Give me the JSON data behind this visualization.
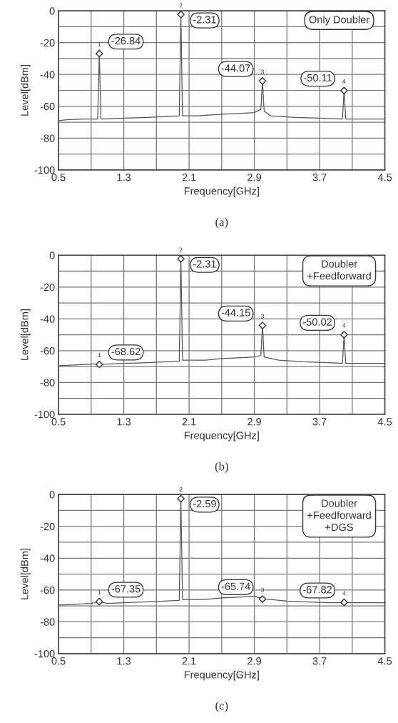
{
  "chart_data": [
    {
      "type": "line",
      "xlabel": "Frequency[GHz]",
      "ylabel": "Level[dBm]",
      "xlim": [
        0.5,
        4.5
      ],
      "ylim": [
        -100,
        0
      ],
      "xticks": [
        0.5,
        {
          "value": 0.9,
          "label": null
        },
        1.3,
        {
          "value": 1.7,
          "label": null
        },
        2.1,
        {
          "value": 2.5,
          "label": null
        },
        2.9,
        {
          "value": 3.3,
          "label": null
        },
        3.7,
        {
          "value": 4.1,
          "label": null
        },
        4.5
      ],
      "yticks": [
        -100,
        {
          "value": -90,
          "label": null
        },
        -80,
        {
          "value": -70,
          "label": null
        },
        -60,
        {
          "value": -50,
          "label": null
        },
        -40,
        {
          "value": -30,
          "label": null
        },
        -20,
        {
          "value": -10,
          "label": null
        },
        0
      ],
      "grid": true,
      "line_style": "solid",
      "series": [
        {
          "color": "#555555",
          "x": [
            0.5,
            0.6,
            0.8,
            0.98,
            1.0,
            1.02,
            1.3,
            1.6,
            1.98,
            2.0,
            2.02,
            2.2,
            2.5,
            2.7,
            2.9,
            2.98,
            3.0,
            3.02,
            3.1,
            3.4,
            3.7,
            3.98,
            4.0,
            4.02,
            4.3,
            4.5
          ],
          "values": [
            -69,
            -68.5,
            -68,
            -68,
            -27,
            -68,
            -67.5,
            -67,
            -66,
            -2,
            -66,
            -66,
            -65,
            -64.5,
            -64,
            -62,
            -44,
            -63,
            -66,
            -67,
            -67.5,
            -68,
            -50,
            -68,
            -68,
            -68
          ]
        },
        {
          "type": "scatter",
          "marker": "diamond",
          "color": "#333333",
          "x": [
            1.0,
            2.0,
            3.0,
            4.0
          ],
          "values": [
            -26.84,
            -2.31,
            -44.07,
            -50.11
          ],
          "value_labels": [
            "-26.84",
            "-2.31",
            "-44.07",
            "-50.11"
          ]
        }
      ],
      "annotations": [
        "Only Doubler",
        "(a)",
        {
          "text": "1",
          "x": 1.0,
          "y": -26.84
        },
        {
          "text": "2",
          "x": 2.0,
          "y": -2.31
        },
        {
          "text": "3",
          "x": 3.0,
          "y": -44.07
        },
        {
          "text": "4",
          "x": 4.0,
          "y": -50.11
        }
      ]
    },
    {
      "type": "line",
      "xlabel": "Frequency[GHz]",
      "ylabel": "Level[dBm]",
      "xlim": [
        0.5,
        4.5
      ],
      "ylim": [
        -100,
        0
      ],
      "xticks": [
        0.5,
        {
          "value": 0.9,
          "label": null
        },
        1.3,
        {
          "value": 1.7,
          "label": null
        },
        2.1,
        {
          "value": 2.5,
          "label": null
        },
        2.9,
        {
          "value": 3.3,
          "label": null
        },
        3.7,
        {
          "value": 4.1,
          "label": null
        },
        4.5
      ],
      "yticks": [
        -100,
        {
          "value": -90,
          "label": null
        },
        -80,
        {
          "value": -70,
          "label": null
        },
        -60,
        {
          "value": -50,
          "label": null
        },
        -40,
        {
          "value": -30,
          "label": null
        },
        -20,
        {
          "value": -10,
          "label": null
        },
        0
      ],
      "grid": true,
      "line_style": "solid",
      "series": [
        {
          "color": "#555555",
          "x": [
            0.5,
            0.7,
            0.9,
            1.0,
            1.1,
            1.3,
            1.6,
            1.98,
            2.0,
            2.02,
            2.3,
            2.5,
            2.7,
            2.9,
            2.98,
            3.0,
            3.02,
            3.2,
            3.5,
            3.8,
            3.98,
            4.0,
            4.02,
            4.3,
            4.5
          ],
          "values": [
            -69.5,
            -69,
            -68.5,
            -68.5,
            -68.5,
            -68,
            -67.5,
            -66.5,
            -2,
            -66,
            -66,
            -65,
            -64.5,
            -64,
            -63,
            -44,
            -64,
            -66,
            -67,
            -67.5,
            -68,
            -50,
            -68,
            -68,
            -68
          ]
        },
        {
          "type": "scatter",
          "marker": "diamond",
          "color": "#333333",
          "x": [
            1.0,
            2.0,
            3.0,
            4.0
          ],
          "values": [
            -68.62,
            -2.31,
            -44.15,
            -50.02
          ],
          "value_labels": [
            "-68.62",
            "-2.31",
            "-44.15",
            "-50.02"
          ]
        }
      ],
      "annotations": [
        "Doubler\n+Feedforward",
        "(b)",
        {
          "text": "1",
          "x": 1.0,
          "y": -68.62
        },
        {
          "text": "2",
          "x": 2.0,
          "y": -2.31
        },
        {
          "text": "3",
          "x": 3.0,
          "y": -44.15
        },
        {
          "text": "4",
          "x": 4.0,
          "y": -50.02
        }
      ]
    },
    {
      "type": "line",
      "xlabel": "Frequency[GHz]",
      "ylabel": "Level[dBm]",
      "xlim": [
        0.5,
        4.5
      ],
      "ylim": [
        -100,
        0
      ],
      "xticks": [
        0.5,
        {
          "value": 0.9,
          "label": null
        },
        1.3,
        {
          "value": 1.7,
          "label": null
        },
        2.1,
        {
          "value": 2.5,
          "label": null
        },
        2.9,
        {
          "value": 3.3,
          "label": null
        },
        3.7,
        {
          "value": 4.1,
          "label": null
        },
        4.5
      ],
      "yticks": [
        -100,
        {
          "value": -90,
          "label": null
        },
        -80,
        {
          "value": -70,
          "label": null
        },
        -60,
        {
          "value": -50,
          "label": null
        },
        -40,
        {
          "value": -30,
          "label": null
        },
        -20,
        {
          "value": -10,
          "label": null
        },
        0
      ],
      "grid": true,
      "line_style": "solid",
      "series": [
        {
          "color": "#555555",
          "x": [
            0.5,
            0.7,
            0.9,
            1.0,
            1.1,
            1.3,
            1.6,
            1.98,
            2.0,
            2.02,
            2.3,
            2.5,
            2.7,
            2.9,
            3.0,
            3.1,
            3.3,
            3.5,
            3.8,
            4.0,
            4.2,
            4.5
          ],
          "values": [
            -69.5,
            -69,
            -68.5,
            -67.5,
            -68.5,
            -68,
            -67.5,
            -66.5,
            -3,
            -66,
            -66,
            -65,
            -64.5,
            -64,
            -65.5,
            -66,
            -67,
            -67.5,
            -68,
            -68,
            -68,
            -68
          ]
        },
        {
          "type": "scatter",
          "marker": "diamond",
          "color": "#333333",
          "x": [
            1.0,
            2.0,
            3.0,
            4.0
          ],
          "values": [
            -67.35,
            -2.59,
            -65.74,
            -67.82
          ],
          "value_labels": [
            "-67.35",
            "-2.59",
            "-65.74",
            "-67.82"
          ]
        }
      ],
      "annotations": [
        "Doubler\n+Feedforward\n+DGS",
        "(c)",
        {
          "text": "1",
          "x": 1.0,
          "y": -67.35
        },
        {
          "text": "2",
          "x": 2.0,
          "y": -2.59
        },
        {
          "text": "3",
          "x": 3.0,
          "y": -65.74
        },
        {
          "text": "4",
          "x": 4.0,
          "y": -67.82
        }
      ]
    }
  ]
}
